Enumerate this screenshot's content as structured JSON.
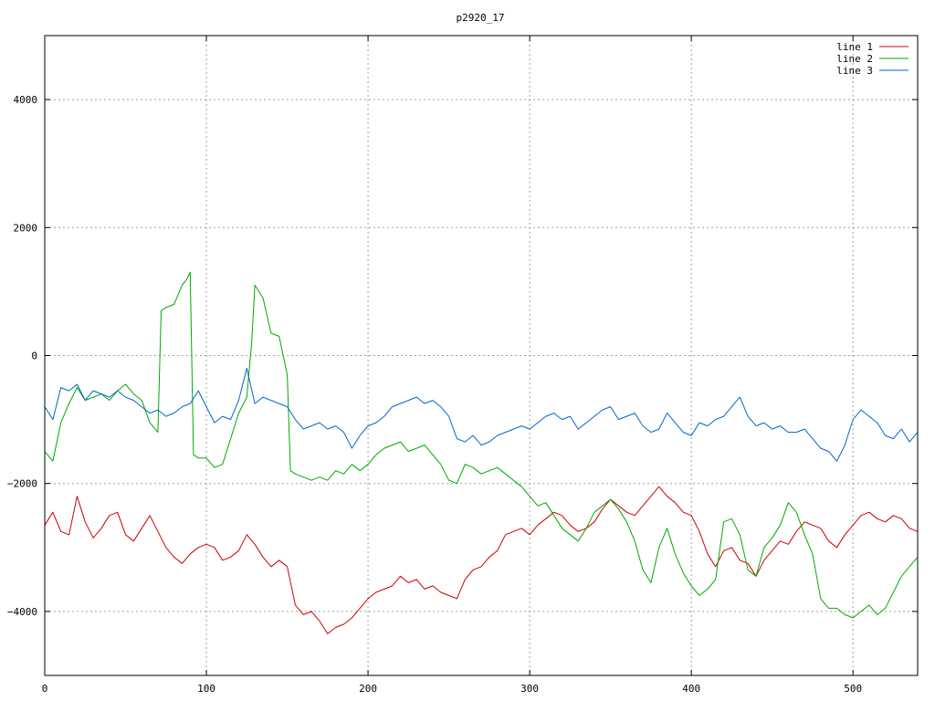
{
  "chart_data": {
    "type": "line",
    "title": "p2920_17",
    "xlabel": "",
    "ylabel": "",
    "xlim": [
      0,
      540
    ],
    "ylim": [
      -5000,
      5000
    ],
    "x_ticks": [
      0,
      100,
      200,
      300,
      400,
      500
    ],
    "y_ticks": [
      -4000,
      -2000,
      0,
      2000,
      4000
    ],
    "grid": true,
    "legend_position": "top-right",
    "series": [
      {
        "name": "line 1",
        "color": "#cc0000",
        "x": [
          0,
          5,
          10,
          15,
          20,
          25,
          30,
          35,
          40,
          45,
          50,
          55,
          60,
          65,
          70,
          75,
          80,
          85,
          90,
          95,
          100,
          105,
          110,
          115,
          120,
          125,
          130,
          135,
          140,
          145,
          150,
          155,
          160,
          165,
          170,
          175,
          180,
          185,
          190,
          195,
          200,
          205,
          210,
          215,
          220,
          225,
          230,
          235,
          240,
          245,
          250,
          255,
          260,
          265,
          270,
          275,
          280,
          285,
          290,
          295,
          300,
          305,
          310,
          315,
          320,
          325,
          330,
          335,
          340,
          345,
          350,
          355,
          360,
          365,
          370,
          375,
          380,
          385,
          390,
          395,
          400,
          405,
          410,
          415,
          420,
          425,
          430,
          435,
          440,
          445,
          450,
          455,
          460,
          465,
          470,
          475,
          480,
          485,
          490,
          495,
          500,
          505,
          510,
          515,
          520,
          525,
          530,
          535,
          540
        ],
        "y": [
          -2650,
          -2450,
          -2750,
          -2800,
          -2200,
          -2600,
          -2850,
          -2700,
          -2500,
          -2450,
          -2800,
          -2900,
          -2700,
          -2500,
          -2750,
          -3000,
          -3150,
          -3250,
          -3100,
          -3000,
          -2950,
          -3000,
          -3200,
          -3150,
          -3050,
          -2800,
          -2950,
          -3150,
          -3300,
          -3200,
          -3300,
          -3900,
          -4050,
          -4000,
          -4150,
          -4350,
          -4250,
          -4200,
          -4100,
          -3950,
          -3800,
          -3700,
          -3650,
          -3600,
          -3450,
          -3550,
          -3500,
          -3650,
          -3600,
          -3700,
          -3750,
          -3800,
          -3500,
          -3350,
          -3300,
          -3150,
          -3050,
          -2800,
          -2750,
          -2700,
          -2800,
          -2650,
          -2550,
          -2450,
          -2500,
          -2650,
          -2750,
          -2700,
          -2600,
          -2400,
          -2250,
          -2350,
          -2450,
          -2500,
          -2350,
          -2200,
          -2050,
          -2200,
          -2300,
          -2450,
          -2500,
          -2750,
          -3100,
          -3300,
          -3050,
          -3000,
          -3200,
          -3250,
          -3450,
          -3200,
          -3050,
          -2900,
          -2950,
          -2750,
          -2600,
          -2650,
          -2700,
          -2900,
          -3000,
          -2800,
          -2650,
          -2500,
          -2450,
          -2550,
          -2600,
          -2500,
          -2550,
          -2700,
          -2750
        ]
      },
      {
        "name": "line 2",
        "color": "#00aa00",
        "x": [
          0,
          5,
          10,
          15,
          20,
          25,
          30,
          35,
          40,
          45,
          50,
          55,
          60,
          65,
          70,
          72,
          75,
          80,
          85,
          88,
          90,
          92,
          95,
          100,
          105,
          110,
          115,
          120,
          125,
          128,
          130,
          135,
          140,
          145,
          150,
          152,
          155,
          160,
          165,
          170,
          175,
          180,
          185,
          190,
          195,
          200,
          205,
          210,
          215,
          220,
          225,
          230,
          235,
          240,
          245,
          250,
          255,
          260,
          265,
          270,
          275,
          280,
          285,
          290,
          295,
          300,
          305,
          310,
          315,
          320,
          325,
          330,
          335,
          340,
          345,
          350,
          355,
          360,
          365,
          370,
          375,
          380,
          385,
          390,
          395,
          400,
          405,
          410,
          415,
          420,
          425,
          430,
          435,
          440,
          445,
          450,
          455,
          460,
          465,
          470,
          475,
          480,
          485,
          490,
          495,
          500,
          505,
          510,
          515,
          520,
          525,
          530,
          535,
          540
        ],
        "y": [
          -1500,
          -1650,
          -1050,
          -750,
          -500,
          -700,
          -650,
          -600,
          -700,
          -550,
          -450,
          -600,
          -700,
          -1050,
          -1200,
          700,
          750,
          800,
          1100,
          1200,
          1300,
          -1550,
          -1600,
          -1600,
          -1750,
          -1700,
          -1300,
          -900,
          -650,
          200,
          1100,
          900,
          350,
          300,
          -300,
          -1800,
          -1850,
          -1900,
          -1950,
          -1900,
          -1950,
          -1800,
          -1850,
          -1700,
          -1800,
          -1700,
          -1550,
          -1450,
          -1400,
          -1350,
          -1500,
          -1450,
          -1400,
          -1550,
          -1700,
          -1950,
          -2000,
          -1700,
          -1750,
          -1850,
          -1800,
          -1750,
          -1850,
          -1950,
          -2050,
          -2200,
          -2350,
          -2300,
          -2500,
          -2700,
          -2800,
          -2900,
          -2700,
          -2450,
          -2350,
          -2250,
          -2400,
          -2600,
          -2900,
          -3350,
          -3550,
          -3000,
          -2700,
          -3100,
          -3400,
          -3600,
          -3750,
          -3650,
          -3500,
          -2600,
          -2550,
          -2800,
          -3350,
          -3450,
          -3000,
          -2850,
          -2650,
          -2300,
          -2450,
          -2800,
          -3100,
          -3800,
          -3950,
          -3950,
          -4050,
          -4100,
          -4000,
          -3900,
          -4050,
          -3950,
          -3700,
          -3450,
          -3300,
          -3150
        ]
      },
      {
        "name": "line 3",
        "color": "#0066cc",
        "x": [
          0,
          5,
          10,
          15,
          20,
          25,
          30,
          35,
          40,
          45,
          50,
          55,
          60,
          65,
          70,
          75,
          80,
          85,
          90,
          95,
          100,
          105,
          110,
          115,
          120,
          125,
          130,
          135,
          140,
          145,
          150,
          155,
          160,
          165,
          170,
          175,
          180,
          185,
          190,
          195,
          200,
          205,
          210,
          215,
          220,
          225,
          230,
          235,
          240,
          245,
          250,
          255,
          260,
          265,
          270,
          275,
          280,
          285,
          290,
          295,
          300,
          305,
          310,
          315,
          320,
          325,
          330,
          335,
          340,
          345,
          350,
          355,
          360,
          365,
          370,
          375,
          380,
          385,
          390,
          395,
          400,
          405,
          410,
          415,
          420,
          425,
          430,
          435,
          440,
          445,
          450,
          455,
          460,
          465,
          470,
          475,
          480,
          485,
          490,
          495,
          500,
          505,
          510,
          515,
          520,
          525,
          530,
          535,
          540
        ],
        "y": [
          -800,
          -1000,
          -500,
          -550,
          -450,
          -700,
          -550,
          -600,
          -650,
          -550,
          -650,
          -700,
          -800,
          -900,
          -850,
          -950,
          -900,
          -800,
          -750,
          -550,
          -800,
          -1050,
          -950,
          -1000,
          -700,
          -200,
          -750,
          -650,
          -700,
          -750,
          -800,
          -1000,
          -1150,
          -1100,
          -1050,
          -1150,
          -1100,
          -1200,
          -1450,
          -1250,
          -1100,
          -1050,
          -950,
          -800,
          -750,
          -700,
          -650,
          -750,
          -700,
          -800,
          -950,
          -1300,
          -1350,
          -1250,
          -1400,
          -1350,
          -1250,
          -1200,
          -1150,
          -1100,
          -1150,
          -1050,
          -950,
          -900,
          -1000,
          -950,
          -1150,
          -1050,
          -950,
          -850,
          -800,
          -1000,
          -950,
          -900,
          -1100,
          -1200,
          -1150,
          -900,
          -1050,
          -1200,
          -1250,
          -1050,
          -1100,
          -1000,
          -950,
          -800,
          -650,
          -950,
          -1100,
          -1050,
          -1150,
          -1100,
          -1200,
          -1200,
          -1150,
          -1300,
          -1450,
          -1500,
          -1650,
          -1400,
          -1000,
          -850,
          -950,
          -1050,
          -1250,
          -1300,
          -1150,
          -1350,
          -1200
        ]
      }
    ]
  }
}
